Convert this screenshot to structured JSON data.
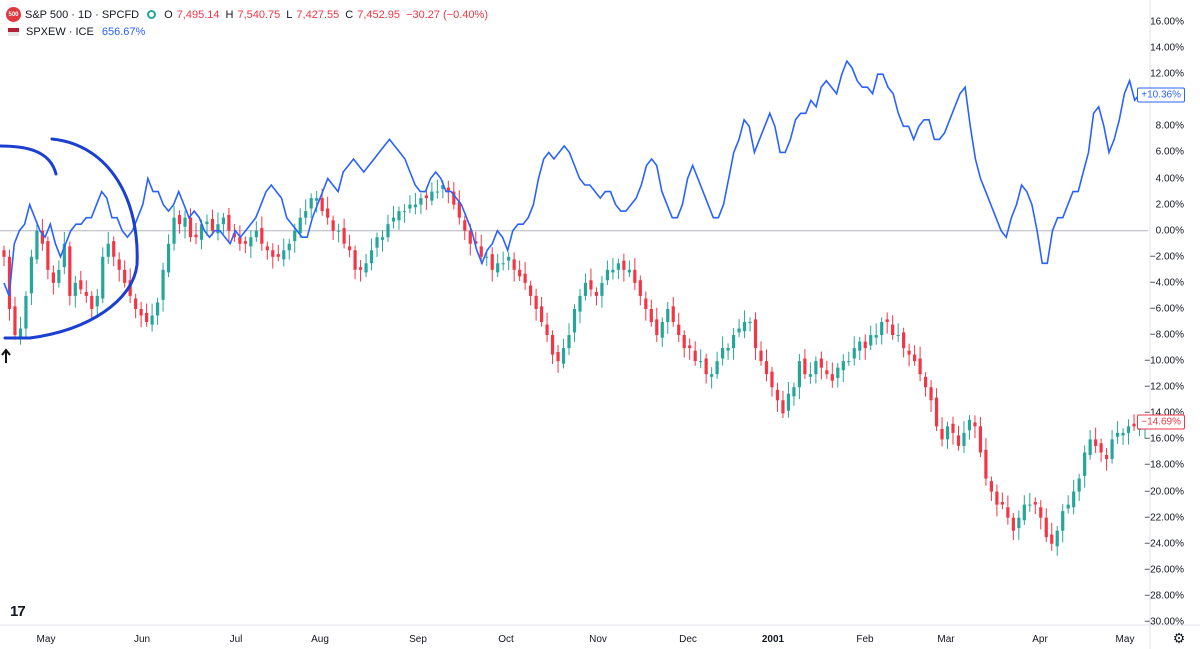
{
  "chart_data": {
    "type": "line",
    "legend_position": "top-left",
    "main_series": {
      "symbol": "S&P 500 · 1D · SPCFD",
      "badge": "500",
      "ohlc": [
        {
          "k": "O",
          "v": "7,495.14"
        },
        {
          "k": "H",
          "v": "7,540.75"
        },
        {
          "k": "L",
          "v": "7,427.55"
        },
        {
          "k": "C",
          "v": "7,452.95"
        }
      ],
      "change": "−30.27 (−0.40%)",
      "last_pct": "−14.69%",
      "up_color": "#26a69a",
      "down_color": "#f23645",
      "closes_pct": [
        -2,
        -6,
        -8,
        -7.5,
        -5,
        -2,
        0,
        -1,
        -3,
        -4,
        -3,
        -1,
        -5,
        -4,
        -4.5,
        -5,
        -6,
        -5,
        -2,
        -1,
        -2,
        -3,
        -4,
        -5,
        -6,
        -6.5,
        -7,
        -6.5,
        -5.5,
        -3,
        -1,
        1,
        0.5,
        1,
        -0.5,
        -0.5,
        0.5,
        0.7,
        0,
        0.5,
        1,
        0,
        -0.5,
        -1,
        -1,
        -0.5,
        0,
        -1,
        -1.5,
        -2,
        -2,
        -1.5,
        -1,
        0,
        1,
        1.5,
        2.5,
        2.5,
        1.5,
        1,
        0,
        0,
        -1,
        -1.5,
        -3,
        -3,
        -2.5,
        -1.5,
        -0.5,
        -0.5,
        0.5,
        1,
        1.5,
        1.5,
        2,
        2,
        2.5,
        2.5,
        3,
        3,
        3.5,
        3,
        2,
        1,
        0,
        -1,
        -1,
        -2,
        -2,
        -3,
        -2.5,
        -2.5,
        -2,
        -3,
        -3.5,
        -4,
        -5,
        -6,
        -7,
        -8,
        -9.5,
        -10,
        -9,
        -8,
        -6,
        -5,
        -4,
        -4.5,
        -5,
        -4,
        -3,
        -3,
        -2.5,
        -3,
        -3,
        -4,
        -5,
        -6,
        -7,
        -8,
        -7,
        -6,
        -7,
        -8,
        -9,
        -9,
        -10,
        -10,
        -11,
        -11,
        -10,
        -9,
        -9,
        -8,
        -7.5,
        -7,
        -7,
        -9,
        -10,
        -11,
        -12,
        -13,
        -14,
        -12.5,
        -12,
        -10,
        -11,
        -11,
        -10,
        -10.5,
        -11,
        -11.5,
        -10.5,
        -10,
        -10,
        -9,
        -8.5,
        -9,
        -8,
        -8,
        -7,
        -7,
        -8,
        -8,
        -9,
        -9.5,
        -10,
        -11,
        -12,
        -13,
        -15,
        -16,
        -15,
        -15.5,
        -16.5,
        -15.5,
        -14.5,
        -15,
        -17,
        -19,
        -20,
        -21,
        -21,
        -22,
        -23,
        -22,
        -21,
        -21,
        -21,
        -22,
        -23.5,
        -24,
        -23,
        -21.5,
        -21,
        -20,
        -19,
        -17,
        -16,
        -16.5,
        -17,
        -17.5,
        -16,
        -15.5,
        -15.5,
        -15,
        -15,
        -15.2,
        -14.7
      ],
      "ohlc_spread_pct": 0.9
    },
    "compare_series": {
      "name": "SPXEW · ICE",
      "value": "656.67%",
      "last_pct": "+10.36%",
      "color": "#2962ff",
      "values_pct": [
        -4,
        -5,
        -1,
        0,
        0.5,
        2,
        1,
        0,
        -0.5,
        0.5,
        -1,
        -2,
        -1,
        0,
        0.5,
        0.5,
        1,
        1,
        2,
        3,
        2.5,
        1,
        1,
        0,
        -0.5,
        0,
        1,
        2,
        4,
        3,
        3,
        2,
        1.5,
        2,
        3,
        2,
        1,
        1.5,
        1,
        0,
        -0.5,
        0,
        0,
        -0.5,
        -1,
        0,
        -0.5,
        0,
        0.5,
        1,
        2,
        3,
        3.5,
        3,
        2.5,
        1,
        0.5,
        0,
        -0.5,
        -0.5,
        1,
        2,
        3,
        4,
        3.5,
        3,
        4.5,
        5,
        5.5,
        5,
        4.5,
        5,
        5.5,
        6,
        6.5,
        7,
        6.5,
        6,
        5.5,
        4.5,
        3.5,
        3,
        3,
        4,
        4.5,
        4,
        3,
        3,
        2.5,
        2,
        1,
        0,
        -1.5,
        -2.5,
        -1.5,
        -1,
        0,
        -0.5,
        -1.5,
        0,
        0.5,
        0.5,
        1,
        2,
        4,
        5.5,
        6,
        5.5,
        6,
        6.5,
        6,
        5,
        4,
        3.5,
        3.5,
        3,
        2.5,
        3,
        3,
        2,
        1.5,
        1.5,
        2,
        2.5,
        3.5,
        5,
        5.5,
        5,
        3,
        2,
        1,
        1,
        2,
        4,
        5,
        4,
        3,
        2,
        1,
        1,
        2,
        4,
        6,
        7,
        8.5,
        8,
        6,
        7,
        8,
        9,
        8,
        6,
        6,
        7,
        8.5,
        9,
        9,
        10,
        9.5,
        11,
        11.5,
        11,
        10.5,
        12,
        13,
        12.5,
        11.5,
        11,
        11,
        10.5,
        12,
        12,
        11,
        10.5,
        9,
        8,
        8,
        7,
        8,
        8.5,
        8.5,
        7,
        7,
        7.5,
        8.5,
        9.5,
        10.5,
        11,
        8,
        5.5,
        4,
        3,
        2,
        1,
        0,
        -0.5,
        1,
        2,
        3.5,
        3,
        2,
        0,
        -2.5,
        -2.5,
        0,
        1,
        1,
        2,
        3,
        3,
        4.5,
        6,
        9,
        9.5,
        8,
        6,
        7,
        8.5,
        10.5,
        11.5,
        10,
        10.5,
        10.4
      ],
      "values_pct_note": ""
    },
    "y_axis": {
      "ylim": [
        -30,
        17
      ],
      "ticks": [
        "16.00%",
        "14.00%",
        "12.00%",
        "10.00%",
        "8.00%",
        "6.00%",
        "4.00%",
        "2.00%",
        "0.00%",
        "−2.00%",
        "−4.00%",
        "−6.00%",
        "−8.00%",
        "−10.00%",
        "−12.00%",
        "−14.00%",
        "−16.00%",
        "−18.00%",
        "−20.00%",
        "−22.00%",
        "−24.00%",
        "−26.00%",
        "−28.00%",
        "−30.00%"
      ],
      "tick_values": [
        16,
        14,
        12,
        10,
        8,
        6,
        4,
        2,
        0,
        -2,
        -4,
        -6,
        -8,
        -10,
        -12,
        -14,
        -16,
        -18,
        -20,
        -22,
        -24,
        -26,
        -28,
        -30
      ]
    },
    "x_axis": {
      "ticks": [
        {
          "label": "May",
          "bold": false
        },
        {
          "label": "Jun",
          "bold": false
        },
        {
          "label": "Jul",
          "bold": false
        },
        {
          "label": "Aug",
          "bold": false
        },
        {
          "label": "Sep",
          "bold": false
        },
        {
          "label": "Oct",
          "bold": false
        },
        {
          "label": "Nov",
          "bold": false
        },
        {
          "label": "Dec",
          "bold": false
        },
        {
          "label": "2001",
          "bold": true
        },
        {
          "label": "Feb",
          "bold": false
        },
        {
          "label": "Mar",
          "bold": false
        },
        {
          "label": "Apr",
          "bold": false
        },
        {
          "label": "May",
          "bold": false
        }
      ]
    },
    "grid": false,
    "zero_line": true
  },
  "ui": {
    "logo": "17",
    "settings_icon": "gear-icon",
    "annotation_color": "#1a3fd1"
  }
}
